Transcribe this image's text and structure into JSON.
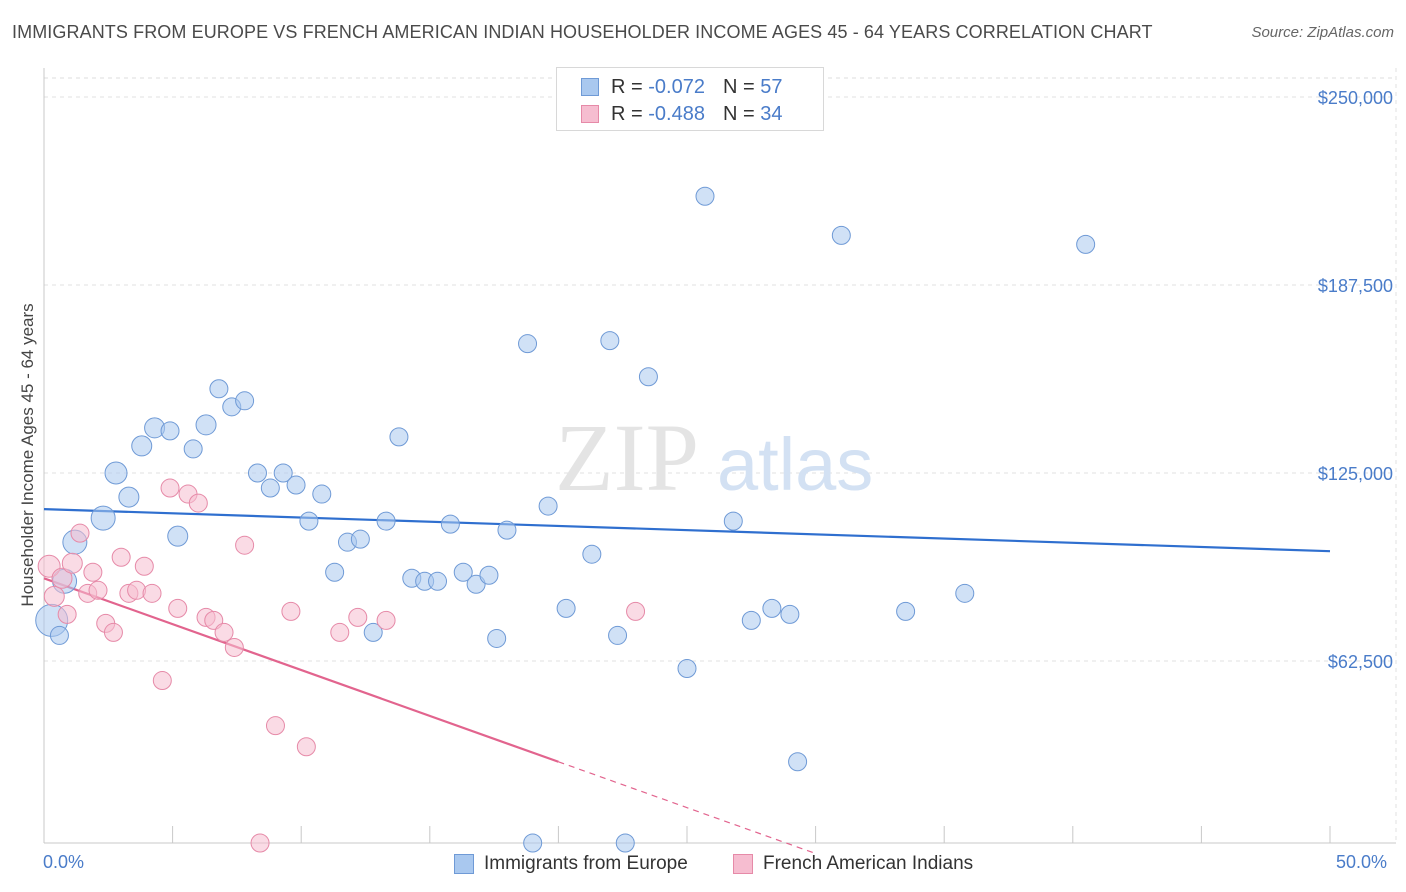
{
  "title": "IMMIGRANTS FROM EUROPE VS FRENCH AMERICAN INDIAN HOUSEHOLDER INCOME AGES 45 - 64 YEARS CORRELATION CHART",
  "source": "Source: ZipAtlas.com",
  "watermark": {
    "zip": "ZIP",
    "atlas": "atlas"
  },
  "legend": {
    "r_label": "R =",
    "n_label": "N =",
    "rows": [
      {
        "r": "-0.072",
        "n": "57",
        "color": "#a9c8ef",
        "border": "#6f9ad6"
      },
      {
        "r": "-0.488",
        "n": "34",
        "color": "#f6bdd0",
        "border": "#e68aa8"
      }
    ]
  },
  "bottom_legend": [
    {
      "label": "Immigrants from Europe",
      "color": "#a9c8ef",
      "border": "#6f9ad6"
    },
    {
      "label": "French American Indians",
      "color": "#f6bdd0",
      "border": "#e68aa8"
    }
  ],
  "chart_data": {
    "type": "scatter",
    "ylabel": "Householder Income Ages 45 - 64 years",
    "x_tick_labels": {
      "min": "0.0%",
      "max": "50.0%"
    },
    "xlim": [
      0,
      50
    ],
    "ylim": [
      0,
      255000
    ],
    "y_ticks": [
      {
        "value": 62500,
        "label": "$62,500"
      },
      {
        "value": 125000,
        "label": "$125,000"
      },
      {
        "value": 187500,
        "label": "$187,500"
      },
      {
        "value": 250000,
        "label": "$250,000"
      }
    ],
    "grid": true,
    "series": [
      {
        "name": "Immigrants from Europe",
        "color": "#a9c8ef",
        "stroke": "#6f9ad6",
        "trend": {
          "x0": 0,
          "y0": 113000,
          "x1": 50,
          "y1": 99000,
          "color": "#2f6fcf"
        },
        "points": [
          [
            0.3,
            76000,
            16
          ],
          [
            0.8,
            89000,
            12
          ],
          [
            1.2,
            102000,
            12
          ],
          [
            2.3,
            110000,
            12
          ],
          [
            2.8,
            125000,
            11
          ],
          [
            3.3,
            117000,
            10
          ],
          [
            3.8,
            134000,
            10
          ],
          [
            4.3,
            140000,
            10
          ],
          [
            4.9,
            139000,
            9
          ],
          [
            5.2,
            104000,
            10
          ],
          [
            5.8,
            133000,
            9
          ],
          [
            6.3,
            141000,
            10
          ],
          [
            6.8,
            153000,
            9
          ],
          [
            7.3,
            147000,
            9
          ],
          [
            7.8,
            149000,
            9
          ],
          [
            8.3,
            125000,
            9
          ],
          [
            8.8,
            120000,
            9
          ],
          [
            9.3,
            125000,
            9
          ],
          [
            9.8,
            121000,
            9
          ],
          [
            10.3,
            109000,
            9
          ],
          [
            10.8,
            118000,
            9
          ],
          [
            11.3,
            92000,
            9
          ],
          [
            11.8,
            102000,
            9
          ],
          [
            12.3,
            103000,
            9
          ],
          [
            12.8,
            72000,
            9
          ],
          [
            13.3,
            109000,
            9
          ],
          [
            13.8,
            137000,
            9
          ],
          [
            14.3,
            90000,
            9
          ],
          [
            14.8,
            89000,
            9
          ],
          [
            15.3,
            89000,
            9
          ],
          [
            15.8,
            108000,
            9
          ],
          [
            16.3,
            92000,
            9
          ],
          [
            16.8,
            88000,
            9
          ],
          [
            17.3,
            91000,
            9
          ],
          [
            17.6,
            70000,
            9
          ],
          [
            18.0,
            106000,
            9
          ],
          [
            18.8,
            168000,
            9
          ],
          [
            19.0,
            2000,
            9
          ],
          [
            19.6,
            114000,
            9
          ],
          [
            20.3,
            80000,
            9
          ],
          [
            21.3,
            98000,
            9
          ],
          [
            22.0,
            169000,
            9
          ],
          [
            22.3,
            71000,
            9
          ],
          [
            22.6,
            2000,
            9
          ],
          [
            23.5,
            157000,
            9
          ],
          [
            25.0,
            60000,
            9
          ],
          [
            25.7,
            217000,
            9
          ],
          [
            26.8,
            109000,
            9
          ],
          [
            27.5,
            76000,
            9
          ],
          [
            28.3,
            80000,
            9
          ],
          [
            29.0,
            78000,
            9
          ],
          [
            29.3,
            29000,
            9
          ],
          [
            31.0,
            204000,
            9
          ],
          [
            33.5,
            79000,
            9
          ],
          [
            35.8,
            85000,
            9
          ],
          [
            40.5,
            201000,
            9
          ],
          [
            0.6,
            71000,
            9
          ]
        ]
      },
      {
        "name": "French American Indians",
        "color": "#f6bdd0",
        "stroke": "#e68aa8",
        "trend": {
          "x0": 0,
          "y0": 90000,
          "x1": 20,
          "y1": 29000,
          "dash_to_x": 30,
          "dash_to_y": -1500,
          "color": "#e2648e"
        },
        "points": [
          [
            0.2,
            94000,
            11
          ],
          [
            0.4,
            84000,
            10
          ],
          [
            0.7,
            90000,
            10
          ],
          [
            0.9,
            78000,
            9
          ],
          [
            1.1,
            95000,
            10
          ],
          [
            1.4,
            105000,
            9
          ],
          [
            1.7,
            85000,
            9
          ],
          [
            1.9,
            92000,
            9
          ],
          [
            2.1,
            86000,
            9
          ],
          [
            2.4,
            75000,
            9
          ],
          [
            2.7,
            72000,
            9
          ],
          [
            3.0,
            97000,
            9
          ],
          [
            3.3,
            85000,
            9
          ],
          [
            3.6,
            86000,
            9
          ],
          [
            3.9,
            94000,
            9
          ],
          [
            4.2,
            85000,
            9
          ],
          [
            4.6,
            56000,
            9
          ],
          [
            4.9,
            120000,
            9
          ],
          [
            5.2,
            80000,
            9
          ],
          [
            5.6,
            118000,
            9
          ],
          [
            6.0,
            115000,
            9
          ],
          [
            6.3,
            77000,
            9
          ],
          [
            6.6,
            76000,
            9
          ],
          [
            7.0,
            72000,
            9
          ],
          [
            7.4,
            67000,
            9
          ],
          [
            7.8,
            101000,
            9
          ],
          [
            8.4,
            2000,
            9
          ],
          [
            9.0,
            41000,
            9
          ],
          [
            9.6,
            79000,
            9
          ],
          [
            10.2,
            34000,
            9
          ],
          [
            11.5,
            72000,
            9
          ],
          [
            12.2,
            77000,
            9
          ],
          [
            13.3,
            76000,
            9
          ],
          [
            23.0,
            79000,
            9
          ]
        ]
      }
    ]
  }
}
